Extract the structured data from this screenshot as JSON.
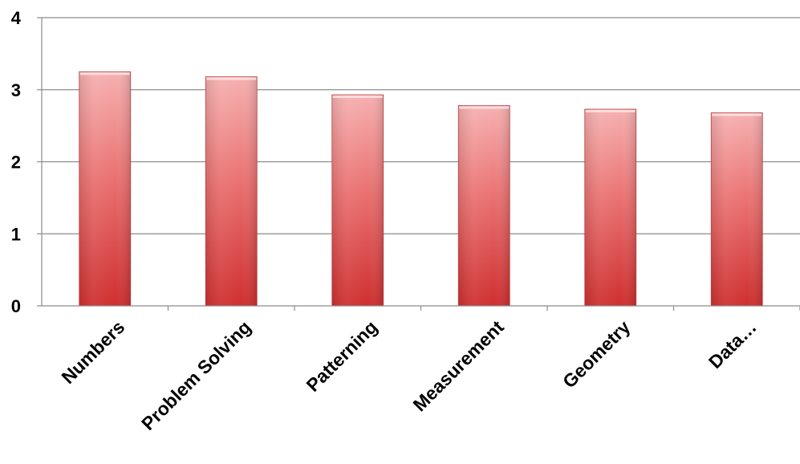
{
  "chart_data": {
    "type": "bar",
    "categories": [
      "Numbers",
      "Problem Solving",
      "Patterning",
      "Measurement",
      "Geometry",
      "Data…"
    ],
    "values": [
      3.25,
      3.18,
      2.93,
      2.78,
      2.73,
      2.68
    ],
    "ylim": [
      0,
      4
    ],
    "yticks": [
      "0",
      "1",
      "2",
      "3",
      "4"
    ],
    "grid": true,
    "legend": "none",
    "colors": {
      "bar_light": "#f6b0b0",
      "bar_mid": "#ea7272",
      "bar_dark": "#cf2f2f",
      "grid": "#8c8c8c",
      "axis": "#8c8c8c"
    }
  }
}
